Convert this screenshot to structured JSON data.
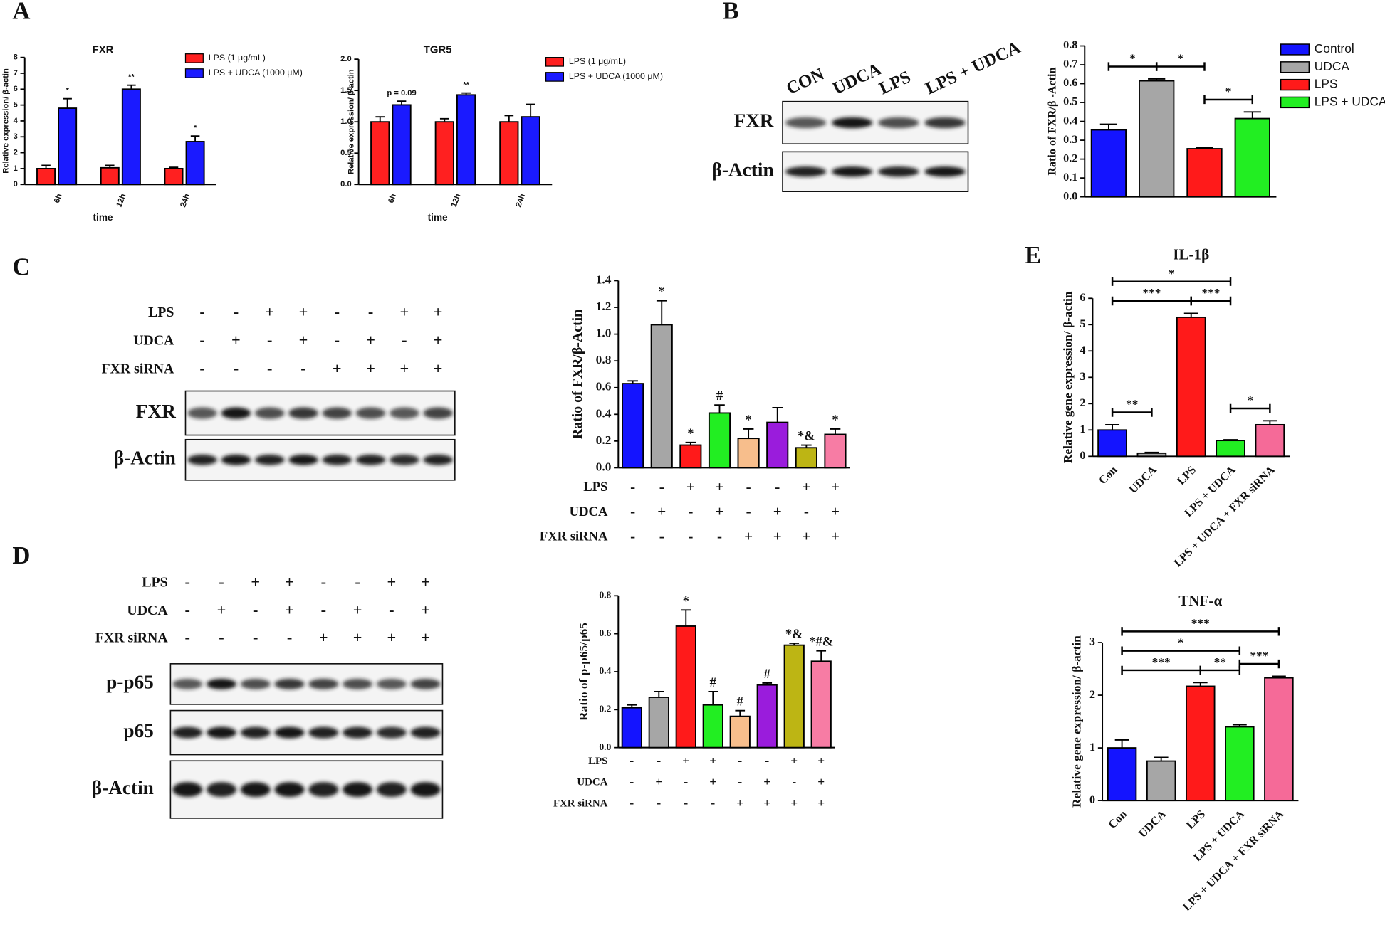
{
  "panel_labels": [
    "A",
    "B",
    "C",
    "D",
    "E"
  ],
  "chart_data": [
    {
      "type": "bar",
      "title": "FXR",
      "x_label": "time",
      "y_label": "Relative expression/ β-actin",
      "categories": [
        "6h",
        "12h",
        "24h"
      ],
      "series": [
        {
          "name": "LPS (1 μg/mL)",
          "color": "#ff2020",
          "values": [
            1.0,
            1.05,
            1.0
          ],
          "errors": [
            0.2,
            0.15,
            0.08
          ]
        },
        {
          "name": "LPS + UDCA (1000 μM)",
          "color": "#1a1aff",
          "values": [
            4.8,
            6.0,
            2.7
          ],
          "errors": [
            0.6,
            0.25,
            0.35
          ],
          "bar_labels": [
            "*",
            "**",
            "*"
          ]
        }
      ],
      "ylim": [
        0,
        8
      ],
      "yticks": [
        0,
        1,
        2,
        3,
        4,
        5,
        6,
        7,
        8
      ]
    },
    {
      "type": "bar",
      "title": "TGR5",
      "x_label": "time",
      "y_label": "Relative expression/ β-actin",
      "categories": [
        "6h",
        "12h",
        "24h"
      ],
      "series": [
        {
          "name": "LPS (1 μg/mL)",
          "color": "#ff2020",
          "values": [
            1.0,
            1.0,
            1.0
          ],
          "errors": [
            0.08,
            0.05,
            0.1
          ]
        },
        {
          "name": "LPS + UDCA (1000 μM)",
          "color": "#1a1aff",
          "values": [
            1.27,
            1.43,
            1.08
          ],
          "errors": [
            0.06,
            0.03,
            0.2
          ],
          "bar_labels": [
            "p = 0.09",
            "**",
            null
          ]
        }
      ],
      "ylim": [
        0,
        2
      ],
      "yticks": [
        {
          "value": 0,
          "label": "0.0"
        },
        0.5,
        {
          "value": 1,
          "label": "1.0"
        },
        1.5,
        {
          "value": 2,
          "label": "2.0"
        }
      ]
    },
    {
      "type": "bar",
      "y_label": "Ratio of FXR/β -Actin",
      "categories": [
        "Control",
        "UDCA",
        "LPS",
        "LPS + UDCA"
      ],
      "values": [
        0.355,
        0.615,
        0.255,
        0.415
      ],
      "errors": [
        0.03,
        0.01,
        0.005,
        0.035
      ],
      "colors": [
        "#1414ff",
        "#a6a6a6",
        "#ff1a1a",
        "#22ee22"
      ],
      "legend": true,
      "comparisons": [
        {
          "between": [
            "Control",
            "UDCA"
          ],
          "label": "*"
        },
        {
          "between": [
            "UDCA",
            "LPS"
          ],
          "label": "*"
        },
        {
          "between": [
            "LPS",
            "LPS + UDCA"
          ],
          "label": "*"
        }
      ],
      "ylim": [
        0,
        0.8
      ],
      "yticks": [
        {
          "value": 0,
          "label": "0.0"
        },
        0.1,
        0.2,
        0.3,
        0.4,
        0.5,
        0.6,
        0.7,
        0.8
      ]
    },
    {
      "type": "bar",
      "y_label": "Ratio of FXR/β-Actin",
      "values": [
        0.63,
        1.07,
        0.17,
        0.41,
        0.22,
        0.34,
        0.15,
        0.25
      ],
      "errors": [
        0.02,
        0.18,
        0.02,
        0.06,
        0.07,
        0.11,
        0.02,
        0.04
      ],
      "bar_labels": [
        null,
        "*",
        "*",
        "#",
        "*",
        null,
        "*&",
        "*"
      ],
      "colors": [
        "#1414ff",
        "#a6a6a6",
        "#ff1a1a",
        "#22ee22",
        "#f7be8c",
        "#9a1cdc",
        "#bdb514",
        "#f77ca4"
      ],
      "conditions": [
        {
          "name": "LPS",
          "signs": [
            "-",
            "-",
            "+",
            "+",
            "-",
            "-",
            "+",
            "+"
          ]
        },
        {
          "name": "UDCA",
          "signs": [
            "-",
            "+",
            "-",
            "+",
            "-",
            "+",
            "-",
            "+"
          ]
        },
        {
          "name": "FXR siRNA",
          "signs": [
            "-",
            "-",
            "-",
            "-",
            "+",
            "+",
            "+",
            "+"
          ]
        }
      ],
      "ylim": [
        0,
        1.4
      ],
      "yticks": [
        {
          "value": 0,
          "label": "0.0"
        },
        0.2,
        0.4,
        0.6,
        0.8,
        {
          "value": 1,
          "label": "1.0"
        },
        1.2,
        1.4
      ]
    },
    {
      "type": "bar",
      "y_label": "Ratio of p-p65/p65",
      "values": [
        0.21,
        0.265,
        0.64,
        0.225,
        0.165,
        0.33,
        0.54,
        0.455
      ],
      "errors": [
        0.015,
        0.03,
        0.085,
        0.07,
        0.03,
        0.01,
        0.01,
        0.055
      ],
      "bar_labels": [
        null,
        null,
        "*",
        "#",
        "#",
        "#",
        "*&",
        "*#&"
      ],
      "colors": [
        "#1414ff",
        "#a6a6a6",
        "#ff1a1a",
        "#22ee22",
        "#f7be8c",
        "#9a1cdc",
        "#bdb514",
        "#f77ca4"
      ],
      "conditions": [
        {
          "name": "LPS",
          "signs": [
            "-",
            "-",
            "+",
            "+",
            "-",
            "-",
            "+",
            "+"
          ]
        },
        {
          "name": "UDCA",
          "signs": [
            "-",
            "+",
            "-",
            "+",
            "-",
            "+",
            "-",
            "+"
          ]
        },
        {
          "name": "FXR siRNA",
          "signs": [
            "-",
            "-",
            "-",
            "-",
            "+",
            "+",
            "+",
            "+"
          ]
        }
      ],
      "ylim": [
        0,
        0.8
      ],
      "yticks": [
        {
          "value": 0,
          "label": "0.0"
        },
        0.2,
        0.4,
        0.6,
        0.8
      ]
    },
    {
      "type": "bar",
      "title": "IL-1β",
      "y_label": "Relative gene expression/ β-actin",
      "categories": [
        "Con",
        "UDCA",
        "LPS",
        "LPS + UDCA",
        "LPS + UDCA + FXR siRNA"
      ],
      "values": [
        1.0,
        0.12,
        5.28,
        0.6,
        1.2
      ],
      "errors": [
        0.2,
        0.03,
        0.15,
        0.03,
        0.15
      ],
      "colors": [
        "#1414ff",
        "#a6a6a6",
        "#ff1a1a",
        "#22ee22",
        "#f56a98"
      ],
      "comparisons": [
        {
          "between": [
            "Con",
            "UDCA"
          ],
          "label": "**"
        },
        {
          "between": [
            "LPS + UDCA",
            "LPS + UDCA + FXR siRNA"
          ],
          "label": "*"
        },
        {
          "between": [
            "Con",
            "LPS"
          ],
          "label": "***"
        },
        {
          "between": [
            "LPS",
            "LPS + UDCA"
          ],
          "label": "***"
        },
        {
          "between": [
            "Con",
            "LPS + UDCA"
          ],
          "label": "*"
        }
      ],
      "ylim": [
        0,
        6
      ],
      "yticks": [
        0,
        1,
        2,
        3,
        4,
        5,
        6
      ]
    },
    {
      "type": "bar",
      "title": "TNF-α",
      "y_label": "Relative gene expression/ β-actin",
      "categories": [
        "Con",
        "UDCA",
        "LPS",
        "LPS + UDCA",
        "LPS + UDCA + FXR siRNA"
      ],
      "values": [
        1.0,
        0.75,
        2.17,
        1.4,
        2.33
      ],
      "errors": [
        0.15,
        0.07,
        0.07,
        0.04,
        0.03
      ],
      "colors": [
        "#1414ff",
        "#a6a6a6",
        "#ff1a1a",
        "#22ee22",
        "#f56a98"
      ],
      "comparisons": [
        {
          "between": [
            "Con",
            "LPS"
          ],
          "label": "***"
        },
        {
          "between": [
            "LPS",
            "LPS + UDCA"
          ],
          "label": "**"
        },
        {
          "between": [
            "LPS + UDCA",
            "LPS + UDCA + FXR siRNA"
          ],
          "label": "***"
        },
        {
          "between": [
            "Con",
            "LPS + UDCA"
          ],
          "label": "*"
        },
        {
          "between": [
            "Con",
            "LPS + UDCA + FXR siRNA"
          ],
          "label": "***"
        }
      ],
      "ylim": [
        0,
        3
      ],
      "yticks": [
        0,
        1,
        2,
        3
      ]
    }
  ],
  "blots": [
    {
      "lanes": [
        "CON",
        "UDCA",
        "LPS",
        "LPS + UDCA"
      ],
      "rows": [
        "FXR",
        "β-Actin"
      ]
    },
    {
      "rows": [
        "FXR",
        "β-Actin"
      ]
    },
    {
      "rows": [
        "p-p65",
        "p65",
        "β-Actin"
      ]
    }
  ]
}
